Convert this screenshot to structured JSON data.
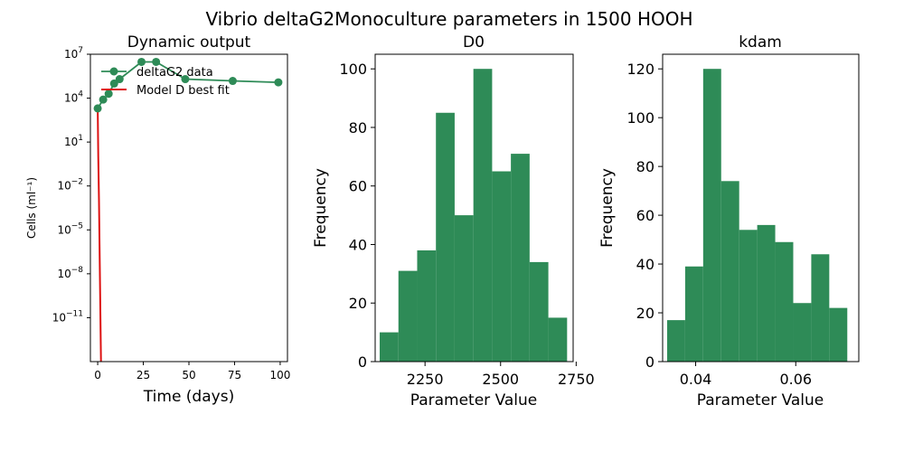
{
  "figure": {
    "suptitle": "Vibrio deltaG2Monoculture parameters in 1500 HOOH"
  },
  "colors": {
    "data": "#2e8b57",
    "model": "#dd1111",
    "hist": "#2e8b57",
    "axis": "#000000"
  },
  "chart_data": [
    {
      "type": "line",
      "title": "Dynamic output",
      "xlabel": "Time (days)",
      "ylabel": "Cells (ml⁻¹)",
      "yscale": "log",
      "xlim": [
        -4,
        104
      ],
      "ylim": [
        1e-14,
        10000000.0
      ],
      "xticks": [
        0,
        25,
        50,
        75,
        100
      ],
      "xtick_labels": [
        "0",
        "25",
        "50",
        "75",
        "100"
      ],
      "yticks_exp": [
        7,
        4,
        1,
        -2,
        -5,
        -8,
        -11
      ],
      "legend_position": "upper-left",
      "series": [
        {
          "name": "deltaG2 data",
          "style": "line-marker",
          "x": [
            0,
            3,
            6,
            9,
            12,
            24,
            32,
            48,
            74,
            99
          ],
          "y": [
            2000,
            8000,
            20000,
            100000,
            200000,
            3000000,
            3000000,
            200000,
            150000,
            120000
          ]
        },
        {
          "name": "Model D best fit",
          "style": "line",
          "x": [
            0,
            0.3,
            0.7,
            1.0,
            1.3,
            1.6,
            2.0
          ],
          "y": [
            2000,
            1,
            0.001,
            1e-06,
            1e-09,
            1e-12,
            1e-16
          ]
        }
      ]
    },
    {
      "type": "bar",
      "title": "D0",
      "xlabel": "Parameter Value",
      "ylabel": "Frequency",
      "xlim": [
        2085,
        2740
      ],
      "ylim": [
        0,
        105
      ],
      "xticks": [
        2250,
        2500,
        2750
      ],
      "xtick_labels": [
        "2250",
        "2500",
        "2750"
      ],
      "yticks": [
        0,
        20,
        40,
        60,
        80,
        100
      ],
      "bin_edges": [
        2100,
        2162,
        2224,
        2286,
        2348,
        2410,
        2472,
        2534,
        2596,
        2658,
        2720
      ],
      "values": [
        10,
        31,
        38,
        85,
        50,
        100,
        65,
        71,
        34,
        15
      ]
    },
    {
      "type": "bar",
      "title": "kdam",
      "xlabel": "Parameter Value",
      "ylabel": "Frequency",
      "xlim": [
        0.0334,
        0.0726
      ],
      "ylim": [
        0,
        126
      ],
      "xticks": [
        0.04,
        0.06
      ],
      "xtick_labels": [
        "0.04",
        "0.06"
      ],
      "yticks": [
        0,
        20,
        40,
        60,
        80,
        100,
        120
      ],
      "bin_edges": [
        0.0343,
        0.0379,
        0.0415,
        0.0451,
        0.0487,
        0.0523,
        0.0559,
        0.0595,
        0.0631,
        0.0667,
        0.0703
      ],
      "values": [
        17,
        39,
        120,
        74,
        54,
        56,
        49,
        24,
        44,
        22
      ]
    }
  ]
}
